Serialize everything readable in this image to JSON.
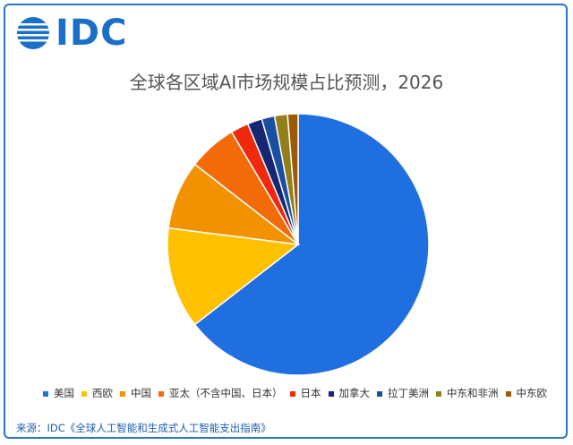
{
  "brand": {
    "logo_text": "IDC"
  },
  "chart_data": {
    "type": "pie",
    "title": "全球各区域AI市场规模占比预测，2026",
    "categories": [
      "美国",
      "西欧",
      "中国",
      "亚太（不含中国、日本）",
      "日本",
      "加拿大",
      "拉丁美洲",
      "中东和非洲",
      "中东欧"
    ],
    "values": [
      64.5,
      12.5,
      8.5,
      6.0,
      2.2,
      1.8,
      1.6,
      1.6,
      1.3
    ],
    "colors": [
      "#1f6fe0",
      "#ffc000",
      "#f39200",
      "#f36b09",
      "#f0280c",
      "#152773",
      "#1a4ea0",
      "#937f19",
      "#9c5a09"
    ],
    "legend_position": "bottom"
  },
  "source": {
    "text": "来源：IDC《全球人工智能和生成式人工智能支出指南》"
  }
}
